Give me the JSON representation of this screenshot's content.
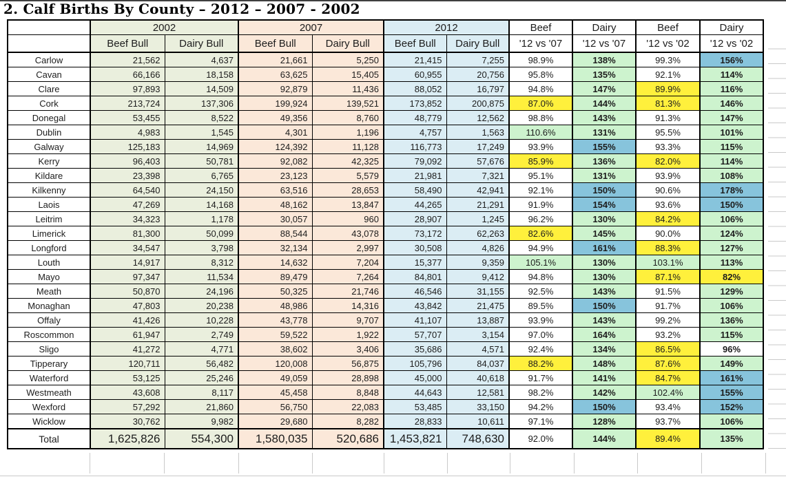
{
  "title": "2. Calf Births By County – 2012 – 2007 - 2002",
  "colors": {
    "tint_2002": "#EAEFDD",
    "tint_2007": "#FBE8D9",
    "tint_2012": "#DBEDF4",
    "highlight_white": "#FFFFFF",
    "highlight_green": "#CDF3CE",
    "highlight_blue": "#87C4DC",
    "highlight_yellow": "#FFF03C",
    "grid_black": "#000000",
    "faint_gridline": "#C9C9C9"
  },
  "table": {
    "year_groups": [
      {
        "label": "2002"
      },
      {
        "label": "2007"
      },
      {
        "label": "2012"
      }
    ],
    "sub_header": {
      "beef": "Beef Bull",
      "dairy": "Dairy Bull"
    },
    "pct_groups": [
      {
        "top": "Beef",
        "bottom": "'12 vs '07"
      },
      {
        "top": "Dairy",
        "bottom": "'12 vs '07"
      },
      {
        "top": "Beef",
        "bottom": "'12 vs '02"
      },
      {
        "top": "Dairy",
        "bottom": "'12 vs '02"
      }
    ],
    "rows": [
      {
        "county": "Carlow",
        "y2002": [
          "21,562",
          "4,637"
        ],
        "y2007": [
          "21,661",
          "5,250"
        ],
        "y2012": [
          "21,415",
          "7,255"
        ],
        "pct": [
          [
            "98.9%",
            "w"
          ],
          [
            "138%",
            "g"
          ],
          [
            "99.3%",
            "w"
          ],
          [
            "156%",
            "b"
          ]
        ]
      },
      {
        "county": "Cavan",
        "y2002": [
          "66,166",
          "18,158"
        ],
        "y2007": [
          "63,625",
          "15,405"
        ],
        "y2012": [
          "60,955",
          "20,756"
        ],
        "pct": [
          [
            "95.8%",
            "w"
          ],
          [
            "135%",
            "g"
          ],
          [
            "92.1%",
            "w"
          ],
          [
            "114%",
            "g"
          ]
        ]
      },
      {
        "county": "Clare",
        "y2002": [
          "97,893",
          "14,509"
        ],
        "y2007": [
          "92,879",
          "11,436"
        ],
        "y2012": [
          "88,052",
          "16,797"
        ],
        "pct": [
          [
            "94.8%",
            "w"
          ],
          [
            "147%",
            "g"
          ],
          [
            "89.9%",
            "y"
          ],
          [
            "116%",
            "g"
          ]
        ]
      },
      {
        "county": "Cork",
        "y2002": [
          "213,724",
          "137,306"
        ],
        "y2007": [
          "199,924",
          "139,521"
        ],
        "y2012": [
          "173,852",
          "200,875"
        ],
        "pct": [
          [
            "87.0%",
            "y"
          ],
          [
            "144%",
            "g"
          ],
          [
            "81.3%",
            "y"
          ],
          [
            "146%",
            "g"
          ]
        ]
      },
      {
        "county": "Donegal",
        "y2002": [
          "53,455",
          "8,522"
        ],
        "y2007": [
          "49,356",
          "8,760"
        ],
        "y2012": [
          "48,779",
          "12,562"
        ],
        "pct": [
          [
            "98.8%",
            "w"
          ],
          [
            "143%",
            "g"
          ],
          [
            "91.3%",
            "w"
          ],
          [
            "147%",
            "g"
          ]
        ]
      },
      {
        "county": "Dublin",
        "y2002": [
          "4,983",
          "1,545"
        ],
        "y2007": [
          "4,301",
          "1,196"
        ],
        "y2012": [
          "4,757",
          "1,563"
        ],
        "pct": [
          [
            "110.6%",
            "g"
          ],
          [
            "131%",
            "g"
          ],
          [
            "95.5%",
            "w"
          ],
          [
            "101%",
            "g"
          ]
        ]
      },
      {
        "county": "Galway",
        "y2002": [
          "125,183",
          "14,969"
        ],
        "y2007": [
          "124,392",
          "11,128"
        ],
        "y2012": [
          "116,773",
          "17,249"
        ],
        "pct": [
          [
            "93.9%",
            "w"
          ],
          [
            "155%",
            "b"
          ],
          [
            "93.3%",
            "w"
          ],
          [
            "115%",
            "g"
          ]
        ]
      },
      {
        "county": "Kerry",
        "y2002": [
          "96,403",
          "50,781"
        ],
        "y2007": [
          "92,082",
          "42,325"
        ],
        "y2012": [
          "79,092",
          "57,676"
        ],
        "pct": [
          [
            "85.9%",
            "y"
          ],
          [
            "136%",
            "g"
          ],
          [
            "82.0%",
            "y"
          ],
          [
            "114%",
            "g"
          ]
        ]
      },
      {
        "county": "Kildare",
        "y2002": [
          "23,398",
          "6,765"
        ],
        "y2007": [
          "23,123",
          "5,579"
        ],
        "y2012": [
          "21,981",
          "7,321"
        ],
        "pct": [
          [
            "95.1%",
            "w"
          ],
          [
            "131%",
            "g"
          ],
          [
            "93.9%",
            "w"
          ],
          [
            "108%",
            "g"
          ]
        ]
      },
      {
        "county": "Kilkenny",
        "y2002": [
          "64,540",
          "24,150"
        ],
        "y2007": [
          "63,516",
          "28,653"
        ],
        "y2012": [
          "58,490",
          "42,941"
        ],
        "pct": [
          [
            "92.1%",
            "w"
          ],
          [
            "150%",
            "b"
          ],
          [
            "90.6%",
            "w"
          ],
          [
            "178%",
            "b"
          ]
        ]
      },
      {
        "county": "Laois",
        "y2002": [
          "47,269",
          "14,168"
        ],
        "y2007": [
          "48,162",
          "13,847"
        ],
        "y2012": [
          "44,265",
          "21,291"
        ],
        "pct": [
          [
            "91.9%",
            "w"
          ],
          [
            "154%",
            "b"
          ],
          [
            "93.6%",
            "w"
          ],
          [
            "150%",
            "b"
          ]
        ]
      },
      {
        "county": "Leitrim",
        "y2002": [
          "34,323",
          "1,178"
        ],
        "y2007": [
          "30,057",
          "960"
        ],
        "y2012": [
          "28,907",
          "1,245"
        ],
        "pct": [
          [
            "96.2%",
            "w"
          ],
          [
            "130%",
            "g"
          ],
          [
            "84.2%",
            "y"
          ],
          [
            "106%",
            "g"
          ]
        ]
      },
      {
        "county": "Limerick",
        "y2002": [
          "81,300",
          "50,099"
        ],
        "y2007": [
          "88,544",
          "43,078"
        ],
        "y2012": [
          "73,172",
          "62,263"
        ],
        "pct": [
          [
            "82.6%",
            "y"
          ],
          [
            "145%",
            "g"
          ],
          [
            "90.0%",
            "w"
          ],
          [
            "124%",
            "g"
          ]
        ]
      },
      {
        "county": "Longford",
        "y2002": [
          "34,547",
          "3,798"
        ],
        "y2007": [
          "32,134",
          "2,997"
        ],
        "y2012": [
          "30,508",
          "4,826"
        ],
        "pct": [
          [
            "94.9%",
            "w"
          ],
          [
            "161%",
            "b"
          ],
          [
            "88.3%",
            "y"
          ],
          [
            "127%",
            "g"
          ]
        ]
      },
      {
        "county": "Louth",
        "y2002": [
          "14,917",
          "8,312"
        ],
        "y2007": [
          "14,632",
          "7,204"
        ],
        "y2012": [
          "15,377",
          "9,359"
        ],
        "pct": [
          [
            "105.1%",
            "g"
          ],
          [
            "130%",
            "g"
          ],
          [
            "103.1%",
            "g"
          ],
          [
            "113%",
            "g"
          ]
        ]
      },
      {
        "county": "Mayo",
        "y2002": [
          "97,347",
          "11,534"
        ],
        "y2007": [
          "89,479",
          "7,264"
        ],
        "y2012": [
          "84,801",
          "9,412"
        ],
        "pct": [
          [
            "94.8%",
            "w"
          ],
          [
            "130%",
            "g"
          ],
          [
            "87.1%",
            "y"
          ],
          [
            "82%",
            "y"
          ]
        ]
      },
      {
        "county": "Meath",
        "y2002": [
          "50,870",
          "24,196"
        ],
        "y2007": [
          "50,325",
          "21,746"
        ],
        "y2012": [
          "46,546",
          "31,155"
        ],
        "pct": [
          [
            "92.5%",
            "w"
          ],
          [
            "143%",
            "g"
          ],
          [
            "91.5%",
            "w"
          ],
          [
            "129%",
            "g"
          ]
        ]
      },
      {
        "county": "Monaghan",
        "y2002": [
          "47,803",
          "20,238"
        ],
        "y2007": [
          "48,986",
          "14,316"
        ],
        "y2012": [
          "43,842",
          "21,475"
        ],
        "pct": [
          [
            "89.5%",
            "w"
          ],
          [
            "150%",
            "b"
          ],
          [
            "91.7%",
            "w"
          ],
          [
            "106%",
            "g"
          ]
        ]
      },
      {
        "county": "Offaly",
        "y2002": [
          "41,426",
          "10,228"
        ],
        "y2007": [
          "43,778",
          "9,707"
        ],
        "y2012": [
          "41,107",
          "13,887"
        ],
        "pct": [
          [
            "93.9%",
            "w"
          ],
          [
            "143%",
            "g"
          ],
          [
            "99.2%",
            "w"
          ],
          [
            "136%",
            "g"
          ]
        ]
      },
      {
        "county": "Roscommon",
        "y2002": [
          "61,947",
          "2,749"
        ],
        "y2007": [
          "59,522",
          "1,922"
        ],
        "y2012": [
          "57,707",
          "3,154"
        ],
        "pct": [
          [
            "97.0%",
            "w"
          ],
          [
            "164%",
            "g"
          ],
          [
            "93.2%",
            "w"
          ],
          [
            "115%",
            "g"
          ]
        ]
      },
      {
        "county": "Sligo",
        "y2002": [
          "41,272",
          "4,771"
        ],
        "y2007": [
          "38,602",
          "3,406"
        ],
        "y2012": [
          "35,686",
          "4,571"
        ],
        "pct": [
          [
            "92.4%",
            "w"
          ],
          [
            "134%",
            "g"
          ],
          [
            "86.5%",
            "y"
          ],
          [
            "96%",
            "w"
          ]
        ]
      },
      {
        "county": "Tipperary",
        "y2002": [
          "120,711",
          "56,482"
        ],
        "y2007": [
          "120,008",
          "56,875"
        ],
        "y2012": [
          "105,796",
          "84,037"
        ],
        "pct": [
          [
            "88.2%",
            "y"
          ],
          [
            "148%",
            "g"
          ],
          [
            "87.6%",
            "y"
          ],
          [
            "149%",
            "g"
          ]
        ]
      },
      {
        "county": "Waterford",
        "y2002": [
          "53,125",
          "25,246"
        ],
        "y2007": [
          "49,059",
          "28,898"
        ],
        "y2012": [
          "45,000",
          "40,618"
        ],
        "pct": [
          [
            "91.7%",
            "w"
          ],
          [
            "141%",
            "g"
          ],
          [
            "84.7%",
            "y"
          ],
          [
            "161%",
            "b"
          ]
        ]
      },
      {
        "county": "Westmeath",
        "y2002": [
          "43,608",
          "8,117"
        ],
        "y2007": [
          "45,458",
          "8,848"
        ],
        "y2012": [
          "44,643",
          "12,581"
        ],
        "pct": [
          [
            "98.2%",
            "w"
          ],
          [
            "142%",
            "g"
          ],
          [
            "102.4%",
            "g"
          ],
          [
            "155%",
            "b"
          ]
        ]
      },
      {
        "county": "Wexford",
        "y2002": [
          "57,292",
          "21,860"
        ],
        "y2007": [
          "56,750",
          "22,083"
        ],
        "y2012": [
          "53,485",
          "33,150"
        ],
        "pct": [
          [
            "94.2%",
            "w"
          ],
          [
            "150%",
            "b"
          ],
          [
            "93.4%",
            "w"
          ],
          [
            "152%",
            "b"
          ]
        ]
      },
      {
        "county": "Wicklow",
        "y2002": [
          "30,762",
          "9,982"
        ],
        "y2007": [
          "29,680",
          "8,282"
        ],
        "y2012": [
          "28,833",
          "10,611"
        ],
        "pct": [
          [
            "97.1%",
            "w"
          ],
          [
            "128%",
            "g"
          ],
          [
            "93.7%",
            "w"
          ],
          [
            "106%",
            "g"
          ]
        ]
      },
      {
        "county": "Total",
        "total": true,
        "y2002": [
          "1,625,826",
          "554,300"
        ],
        "y2007": [
          "1,580,035",
          "520,686"
        ],
        "y2012": [
          "1,453,821",
          "748,630"
        ],
        "pct": [
          [
            "92.0%",
            "w"
          ],
          [
            "144%",
            "g"
          ],
          [
            "89.4%",
            "y"
          ],
          [
            "135%",
            "g"
          ]
        ]
      }
    ]
  }
}
